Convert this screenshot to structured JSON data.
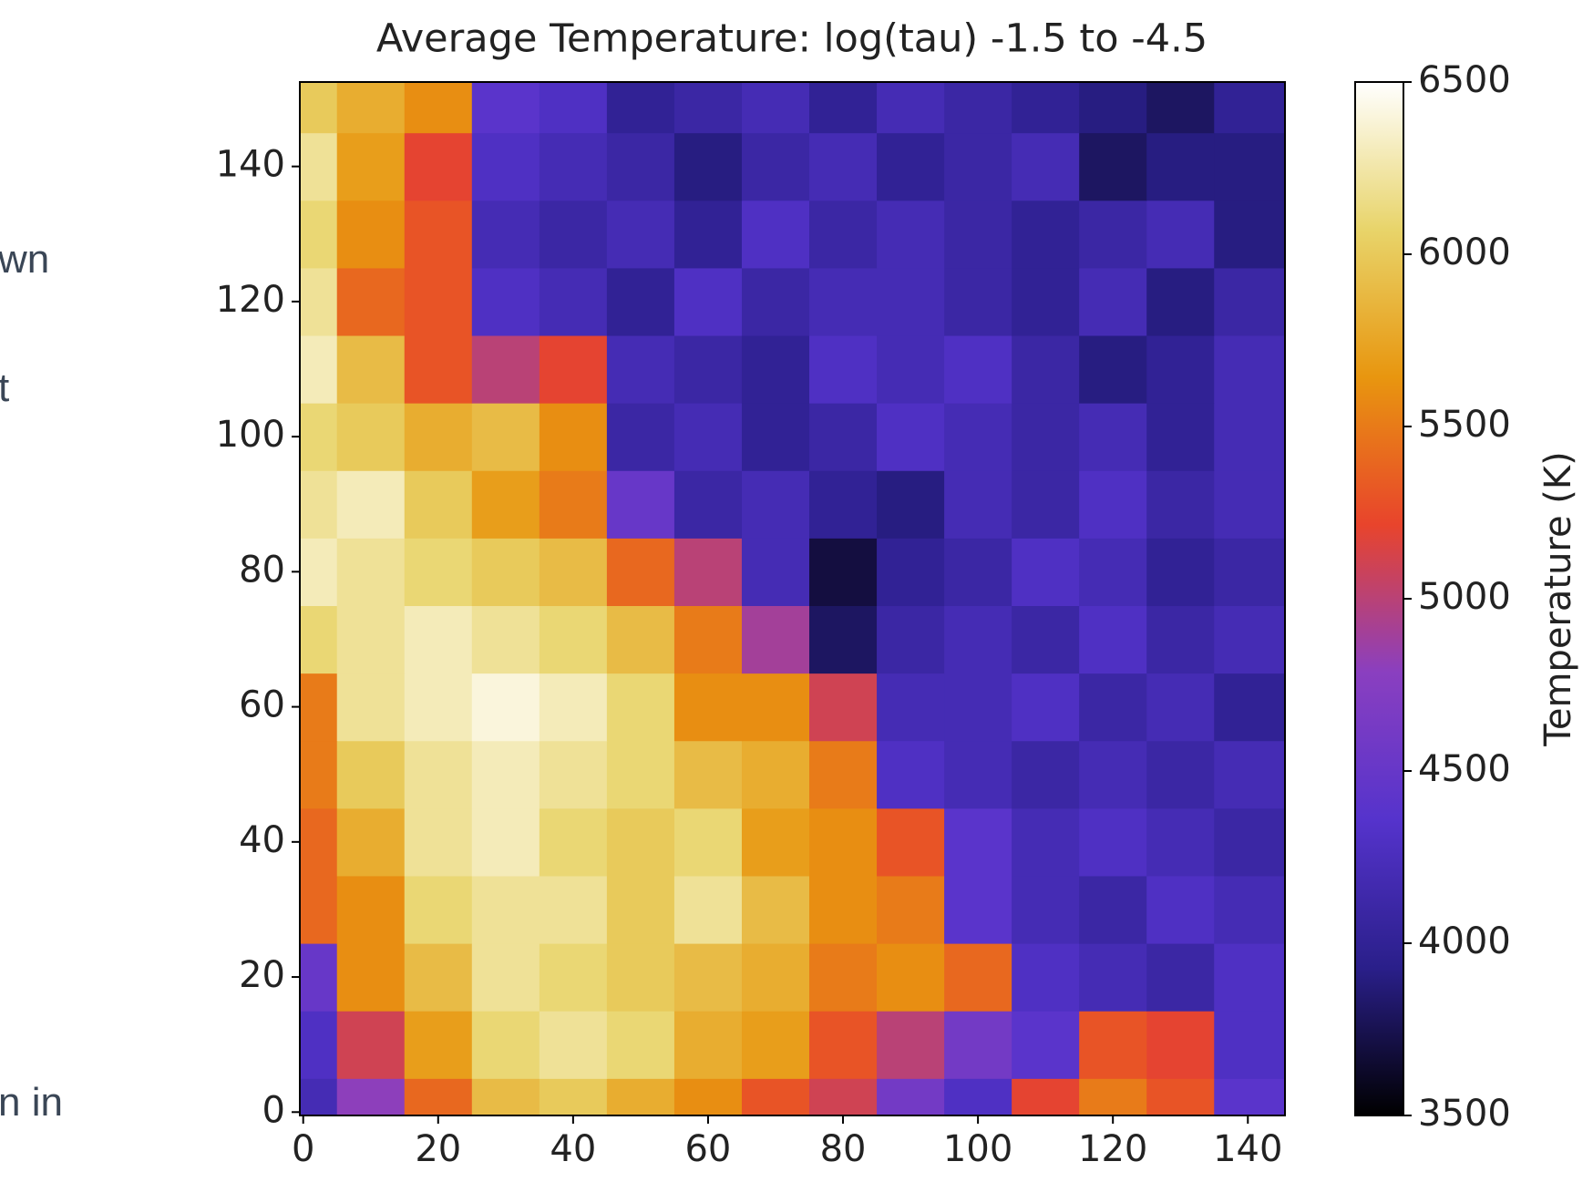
{
  "side_text": [
    "wn",
    "t",
    "n in"
  ],
  "chart_data": {
    "type": "heatmap",
    "title": "Average Temperature: log(tau) -1.5 to -4.5",
    "x": [
      0,
      10,
      20,
      30,
      40,
      50,
      60,
      70,
      80,
      90,
      100,
      110,
      120,
      130,
      140
    ],
    "y": [
      0,
      10,
      20,
      30,
      40,
      50,
      60,
      70,
      80,
      90,
      100,
      110,
      120,
      130,
      140,
      150
    ],
    "z": [
      [
        4200,
        4800,
        5400,
        5900,
        6000,
        5800,
        5600,
        5300,
        5100,
        4600,
        4300,
        5200,
        5500,
        5300,
        4400
      ],
      [
        4300,
        5100,
        5700,
        6100,
        6200,
        6100,
        5800,
        5700,
        5300,
        5000,
        4600,
        4400,
        5300,
        5200,
        4300
      ],
      [
        4500,
        5600,
        5900,
        6200,
        6100,
        6000,
        5900,
        5800,
        5500,
        5600,
        5400,
        4300,
        4200,
        4100,
        4300
      ],
      [
        5400,
        5600,
        6100,
        6200,
        6200,
        6000,
        6200,
        5900,
        5600,
        5500,
        4400,
        4200,
        4100,
        4300,
        4200
      ],
      [
        5400,
        5800,
        6200,
        6300,
        6100,
        6000,
        6100,
        5700,
        5600,
        5300,
        4400,
        4200,
        4300,
        4200,
        4100
      ],
      [
        5500,
        6000,
        6200,
        6300,
        6200,
        6100,
        5900,
        5800,
        5500,
        4300,
        4200,
        4100,
        4200,
        4100,
        4200
      ],
      [
        5500,
        6200,
        6300,
        6400,
        6300,
        6100,
        5600,
        5600,
        5100,
        4200,
        4200,
        4300,
        4100,
        4200,
        4000
      ],
      [
        6100,
        6200,
        6300,
        6200,
        6100,
        5900,
        5500,
        4900,
        3800,
        4100,
        4200,
        4100,
        4300,
        4100,
        4200
      ],
      [
        6300,
        6200,
        6100,
        6000,
        5900,
        5400,
        5000,
        4200,
        3700,
        4000,
        4100,
        4300,
        4200,
        4000,
        4100
      ],
      [
        6200,
        6300,
        6000,
        5700,
        5500,
        4500,
        4100,
        4200,
        4000,
        3900,
        4200,
        4100,
        4300,
        4100,
        4200
      ],
      [
        6100,
        6000,
        5800,
        5900,
        5600,
        4100,
        4200,
        4000,
        4100,
        4300,
        4200,
        4100,
        4200,
        4000,
        4200
      ],
      [
        6300,
        5900,
        5300,
        5000,
        5200,
        4200,
        4100,
        4000,
        4300,
        4200,
        4300,
        4100,
        3900,
        4000,
        4200
      ],
      [
        6200,
        5400,
        5300,
        4300,
        4200,
        4000,
        4300,
        4100,
        4200,
        4200,
        4100,
        4000,
        4200,
        3900,
        4100
      ],
      [
        6100,
        5600,
        5300,
        4200,
        4100,
        4200,
        4000,
        4300,
        4100,
        4200,
        4100,
        4000,
        4100,
        4200,
        3900
      ],
      [
        6200,
        5700,
        5200,
        4300,
        4200,
        4100,
        3900,
        4100,
        4200,
        4000,
        4100,
        4200,
        3800,
        3900,
        3900
      ],
      [
        6000,
        5800,
        5600,
        4400,
        4300,
        4000,
        4100,
        4200,
        4000,
        4200,
        4100,
        4000,
        3900,
        3800,
        4000
      ]
    ],
    "xlim": [
      -0.5,
      145.5
    ],
    "ylim": [
      -0.5,
      152.5
    ],
    "xticks": [
      0,
      20,
      40,
      60,
      80,
      100,
      120,
      140
    ],
    "yticks": [
      0,
      20,
      40,
      60,
      80,
      100,
      120,
      140
    ],
    "clim": [
      3500,
      6500
    ],
    "cticks": [
      3500,
      4000,
      4500,
      5000,
      5500,
      6000,
      6500
    ],
    "colorbar_label": "Temperature (K)",
    "colormap": [
      "#000000",
      "#2a1f8a",
      "#5533cc",
      "#8a3fc0",
      "#e8442c",
      "#e8960f",
      "#e8d46a",
      "#ffffff"
    ]
  }
}
